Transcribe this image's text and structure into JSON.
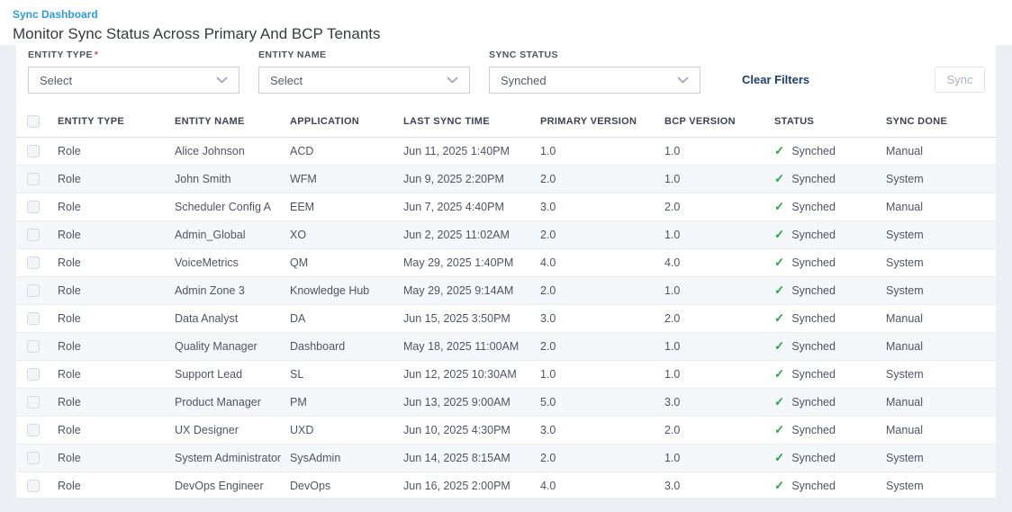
{
  "page": {
    "breadcrumb": "Sync Dashboard",
    "title": "Monitor Sync Status Across Primary And BCP Tenants"
  },
  "filters": {
    "entity_type": {
      "label": "ENTITY TYPE",
      "required_marker": "*",
      "value": "Select"
    },
    "entity_name": {
      "label": "ENTITY NAME",
      "value": "Select"
    },
    "sync_status": {
      "label": "SYNC STATUS",
      "value": "Synched"
    },
    "clear_filters_label": "Clear Filters",
    "sync_button_label": "Sync",
    "sync_button_enabled": false
  },
  "table": {
    "columns": [
      "ENTITY TYPE",
      "ENTITY NAME",
      "APPLICATION",
      "LAST SYNC TIME",
      "PRIMARY VERSION",
      "BCP VERSION",
      "STATUS",
      "SYNC DONE"
    ],
    "rows": [
      {
        "entity_type": "Role",
        "entity_name": "Alice Johnson",
        "application": "ACD",
        "last_sync_time": "Jun 11, 2025 1:40PM",
        "primary_version": "1.0",
        "bcp_version": "1.0",
        "status": "Synched",
        "sync_done": "Manual"
      },
      {
        "entity_type": "Role",
        "entity_name": "John Smith",
        "application": "WFM",
        "last_sync_time": "Jun 9, 2025 2:20PM",
        "primary_version": "2.0",
        "bcp_version": "1.0",
        "status": "Synched",
        "sync_done": "System"
      },
      {
        "entity_type": "Role",
        "entity_name": "Scheduler Config A",
        "application": "EEM",
        "last_sync_time": "Jun 7, 2025 4:40PM",
        "primary_version": "3.0",
        "bcp_version": "2.0",
        "status": "Synched",
        "sync_done": "Manual"
      },
      {
        "entity_type": "Role",
        "entity_name": "Admin_Global",
        "application": "XO",
        "last_sync_time": "Jun 2, 2025 11:02AM",
        "primary_version": "2.0",
        "bcp_version": "1.0",
        "status": "Synched",
        "sync_done": "System"
      },
      {
        "entity_type": "Role",
        "entity_name": "VoiceMetrics",
        "application": "QM",
        "last_sync_time": "May 29, 2025 1:40PM",
        "primary_version": "4.0",
        "bcp_version": "4.0",
        "status": "Synched",
        "sync_done": "System"
      },
      {
        "entity_type": "Role",
        "entity_name": "Admin Zone 3",
        "application": "Knowledge Hub",
        "last_sync_time": "May 29, 2025 9:14AM",
        "primary_version": "2.0",
        "bcp_version": "1.0",
        "status": "Synched",
        "sync_done": "System"
      },
      {
        "entity_type": "Role",
        "entity_name": "Data Analyst",
        "application": "DA",
        "last_sync_time": "Jun 15, 2025 3:50PM",
        "primary_version": "3.0",
        "bcp_version": "2.0",
        "status": "Synched",
        "sync_done": "Manual"
      },
      {
        "entity_type": "Role",
        "entity_name": "Quality Manager",
        "application": "Dashboard",
        "last_sync_time": "May 18, 2025 11:00AM",
        "primary_version": "2.0",
        "bcp_version": "1.0",
        "status": "Synched",
        "sync_done": "Manual"
      },
      {
        "entity_type": "Role",
        "entity_name": "Support Lead",
        "application": "SL",
        "last_sync_time": "Jun 12, 2025 10:30AM",
        "primary_version": "1.0",
        "bcp_version": "1.0",
        "status": "Synched",
        "sync_done": "System"
      },
      {
        "entity_type": "Role",
        "entity_name": "Product Manager",
        "application": "PM",
        "last_sync_time": "Jun 13, 2025 9:00AM",
        "primary_version": "5.0",
        "bcp_version": "3.0",
        "status": "Synched",
        "sync_done": "Manual"
      },
      {
        "entity_type": "Role",
        "entity_name": "UX Designer",
        "application": "UXD",
        "last_sync_time": "Jun 10, 2025 4:30PM",
        "primary_version": "3.0",
        "bcp_version": "2.0",
        "status": "Synched",
        "sync_done": "Manual"
      },
      {
        "entity_type": "Role",
        "entity_name": "System Administrator",
        "application": "SysAdmin",
        "last_sync_time": "Jun 14, 2025 8:15AM",
        "primary_version": "2.0",
        "bcp_version": "1.0",
        "status": "Synched",
        "sync_done": "System"
      },
      {
        "entity_type": "Role",
        "entity_name": "DevOps Engineer",
        "application": "DevOps",
        "last_sync_time": "Jun 16, 2025 2:00PM",
        "primary_version": "4.0",
        "bcp_version": "3.0",
        "status": "Synched",
        "sync_done": "System"
      }
    ]
  },
  "icons": {
    "status_check": "check-icon",
    "dropdown": "chevron-down-icon"
  },
  "colors": {
    "breadcrumb_blue": "#2e9bd6",
    "clear_filters_navy": "#1e3f66",
    "success_green": "#27a844",
    "page_background": "#ecf0f4",
    "row_stripe": "#f5f8fa",
    "required_red": "#e04b3a"
  }
}
